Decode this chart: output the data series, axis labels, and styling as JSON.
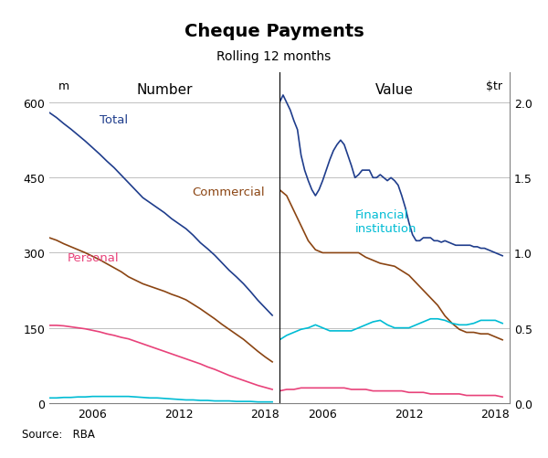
{
  "title": "Cheque Payments",
  "subtitle": "Rolling 12 months",
  "ylabel_left": "m",
  "ylabel_right": "$tr",
  "panel_left_label": "Number",
  "panel_right_label": "Value",
  "source": "Source:   RBA",
  "background_color": "#ffffff",
  "ylim_left": [
    0,
    660
  ],
  "ylim_right": [
    0.0,
    2.2
  ],
  "yticks_left": [
    0,
    150,
    300,
    450,
    600
  ],
  "yticks_right": [
    0.0,
    0.5,
    1.0,
    1.5,
    2.0
  ],
  "xstart": 2003.0,
  "xend": 2019.0,
  "xticks": [
    2006,
    2012,
    2018
  ],
  "colors": {
    "total": "#1f3d8c",
    "commercial": "#8b4513",
    "personal": "#e8427a",
    "financial": "#00bcd4"
  },
  "series": {
    "left_total": {
      "x": [
        2003.0,
        2003.5,
        2004.0,
        2004.5,
        2005.0,
        2005.5,
        2006.0,
        2006.5,
        2007.0,
        2007.5,
        2008.0,
        2008.5,
        2009.0,
        2009.5,
        2010.0,
        2010.5,
        2011.0,
        2011.5,
        2012.0,
        2012.5,
        2013.0,
        2013.5,
        2014.0,
        2014.5,
        2015.0,
        2015.5,
        2016.0,
        2016.5,
        2017.0,
        2017.5,
        2018.0,
        2018.5
      ],
      "y": [
        580,
        570,
        558,
        547,
        535,
        523,
        510,
        497,
        483,
        470,
        455,
        440,
        425,
        410,
        400,
        390,
        380,
        368,
        358,
        348,
        335,
        320,
        308,
        295,
        280,
        265,
        252,
        238,
        222,
        205,
        190,
        175
      ]
    },
    "left_commercial": {
      "x": [
        2003.0,
        2003.5,
        2004.0,
        2004.5,
        2005.0,
        2005.5,
        2006.0,
        2006.5,
        2007.0,
        2007.5,
        2008.0,
        2008.5,
        2009.0,
        2009.5,
        2010.0,
        2010.5,
        2011.0,
        2011.5,
        2012.0,
        2012.5,
        2013.0,
        2013.5,
        2014.0,
        2014.5,
        2015.0,
        2015.5,
        2016.0,
        2016.5,
        2017.0,
        2017.5,
        2018.0,
        2018.5
      ],
      "y": [
        330,
        325,
        318,
        312,
        306,
        300,
        293,
        286,
        278,
        270,
        262,
        252,
        245,
        238,
        233,
        228,
        223,
        217,
        212,
        206,
        197,
        188,
        178,
        168,
        157,
        147,
        137,
        127,
        115,
        103,
        92,
        82
      ]
    },
    "left_personal": {
      "x": [
        2003.0,
        2003.5,
        2004.0,
        2004.5,
        2005.0,
        2005.5,
        2006.0,
        2006.5,
        2007.0,
        2007.5,
        2008.0,
        2008.5,
        2009.0,
        2009.5,
        2010.0,
        2010.5,
        2011.0,
        2011.5,
        2012.0,
        2012.5,
        2013.0,
        2013.5,
        2014.0,
        2014.5,
        2015.0,
        2015.5,
        2016.0,
        2016.5,
        2017.0,
        2017.5,
        2018.0,
        2018.5
      ],
      "y": [
        155,
        155,
        154,
        152,
        150,
        148,
        145,
        142,
        138,
        135,
        131,
        128,
        123,
        118,
        113,
        108,
        103,
        98,
        93,
        88,
        83,
        78,
        72,
        67,
        61,
        55,
        50,
        45,
        40,
        35,
        31,
        27
      ]
    },
    "left_financial": {
      "x": [
        2003.0,
        2003.5,
        2004.0,
        2004.5,
        2005.0,
        2005.5,
        2006.0,
        2006.5,
        2007.0,
        2007.5,
        2008.0,
        2008.5,
        2009.0,
        2009.5,
        2010.0,
        2010.5,
        2011.0,
        2011.5,
        2012.0,
        2012.5,
        2013.0,
        2013.5,
        2014.0,
        2014.5,
        2015.0,
        2015.5,
        2016.0,
        2016.5,
        2017.0,
        2017.5,
        2018.0,
        2018.5
      ],
      "y": [
        10,
        10,
        11,
        11,
        12,
        12,
        13,
        13,
        13,
        13,
        13,
        13,
        12,
        11,
        10,
        10,
        9,
        8,
        7,
        6,
        6,
        5,
        5,
        4,
        4,
        4,
        3,
        3,
        3,
        2,
        2,
        2
      ]
    },
    "right_total": {
      "x": [
        2003.0,
        2003.25,
        2003.5,
        2003.75,
        2004.0,
        2004.25,
        2004.5,
        2004.75,
        2005.0,
        2005.25,
        2005.5,
        2005.75,
        2006.0,
        2006.25,
        2006.5,
        2006.75,
        2007.0,
        2007.25,
        2007.5,
        2007.75,
        2008.0,
        2008.25,
        2008.5,
        2008.75,
        2009.0,
        2009.25,
        2009.5,
        2009.75,
        2010.0,
        2010.25,
        2010.5,
        2010.75,
        2011.0,
        2011.25,
        2011.5,
        2011.75,
        2012.0,
        2012.25,
        2012.5,
        2012.75,
        2013.0,
        2013.25,
        2013.5,
        2013.75,
        2014.0,
        2014.25,
        2014.5,
        2014.75,
        2015.0,
        2015.25,
        2015.5,
        2015.75,
        2016.0,
        2016.25,
        2016.5,
        2016.75,
        2017.0,
        2017.25,
        2017.5,
        2017.75,
        2018.0,
        2018.25,
        2018.5
      ],
      "y": [
        2.0,
        2.05,
        2.0,
        1.95,
        1.88,
        1.82,
        1.65,
        1.55,
        1.48,
        1.42,
        1.38,
        1.42,
        1.48,
        1.55,
        1.62,
        1.68,
        1.72,
        1.75,
        1.72,
        1.65,
        1.58,
        1.5,
        1.52,
        1.55,
        1.55,
        1.55,
        1.5,
        1.5,
        1.52,
        1.5,
        1.48,
        1.5,
        1.48,
        1.45,
        1.38,
        1.3,
        1.2,
        1.12,
        1.08,
        1.08,
        1.1,
        1.1,
        1.1,
        1.08,
        1.08,
        1.07,
        1.08,
        1.07,
        1.06,
        1.05,
        1.05,
        1.05,
        1.05,
        1.05,
        1.04,
        1.04,
        1.03,
        1.03,
        1.02,
        1.01,
        1.0,
        0.99,
        0.98
      ]
    },
    "right_commercial": {
      "x": [
        2003.0,
        2003.5,
        2004.0,
        2004.5,
        2005.0,
        2005.5,
        2006.0,
        2006.5,
        2007.0,
        2007.5,
        2008.0,
        2008.5,
        2009.0,
        2009.5,
        2010.0,
        2010.5,
        2011.0,
        2011.5,
        2012.0,
        2012.5,
        2013.0,
        2013.5,
        2014.0,
        2014.5,
        2015.0,
        2015.5,
        2016.0,
        2016.5,
        2017.0,
        2017.5,
        2018.0,
        2018.5
      ],
      "y": [
        1.42,
        1.38,
        1.28,
        1.18,
        1.08,
        1.02,
        1.0,
        1.0,
        1.0,
        1.0,
        1.0,
        1.0,
        0.97,
        0.95,
        0.93,
        0.92,
        0.91,
        0.88,
        0.85,
        0.8,
        0.75,
        0.7,
        0.65,
        0.58,
        0.53,
        0.49,
        0.47,
        0.47,
        0.46,
        0.46,
        0.44,
        0.42
      ]
    },
    "right_financial": {
      "x": [
        2003.0,
        2003.5,
        2004.0,
        2004.5,
        2005.0,
        2005.5,
        2006.0,
        2006.5,
        2007.0,
        2007.5,
        2008.0,
        2008.5,
        2009.0,
        2009.5,
        2010.0,
        2010.5,
        2011.0,
        2011.5,
        2012.0,
        2012.5,
        2013.0,
        2013.5,
        2014.0,
        2014.5,
        2015.0,
        2015.5,
        2016.0,
        2016.5,
        2017.0,
        2017.5,
        2018.0,
        2018.5
      ],
      "y": [
        0.42,
        0.45,
        0.47,
        0.49,
        0.5,
        0.52,
        0.5,
        0.48,
        0.48,
        0.48,
        0.48,
        0.5,
        0.52,
        0.54,
        0.55,
        0.52,
        0.5,
        0.5,
        0.5,
        0.52,
        0.54,
        0.56,
        0.56,
        0.55,
        0.53,
        0.52,
        0.52,
        0.53,
        0.55,
        0.55,
        0.55,
        0.53
      ]
    },
    "right_personal": {
      "x": [
        2003.0,
        2003.5,
        2004.0,
        2004.5,
        2005.0,
        2005.5,
        2006.0,
        2006.5,
        2007.0,
        2007.5,
        2008.0,
        2008.5,
        2009.0,
        2009.5,
        2010.0,
        2010.5,
        2011.0,
        2011.5,
        2012.0,
        2012.5,
        2013.0,
        2013.5,
        2014.0,
        2014.5,
        2015.0,
        2015.5,
        2016.0,
        2016.5,
        2017.0,
        2017.5,
        2018.0,
        2018.5
      ],
      "y": [
        0.08,
        0.09,
        0.09,
        0.1,
        0.1,
        0.1,
        0.1,
        0.1,
        0.1,
        0.1,
        0.09,
        0.09,
        0.09,
        0.08,
        0.08,
        0.08,
        0.08,
        0.08,
        0.07,
        0.07,
        0.07,
        0.06,
        0.06,
        0.06,
        0.06,
        0.06,
        0.05,
        0.05,
        0.05,
        0.05,
        0.05,
        0.04
      ]
    }
  }
}
